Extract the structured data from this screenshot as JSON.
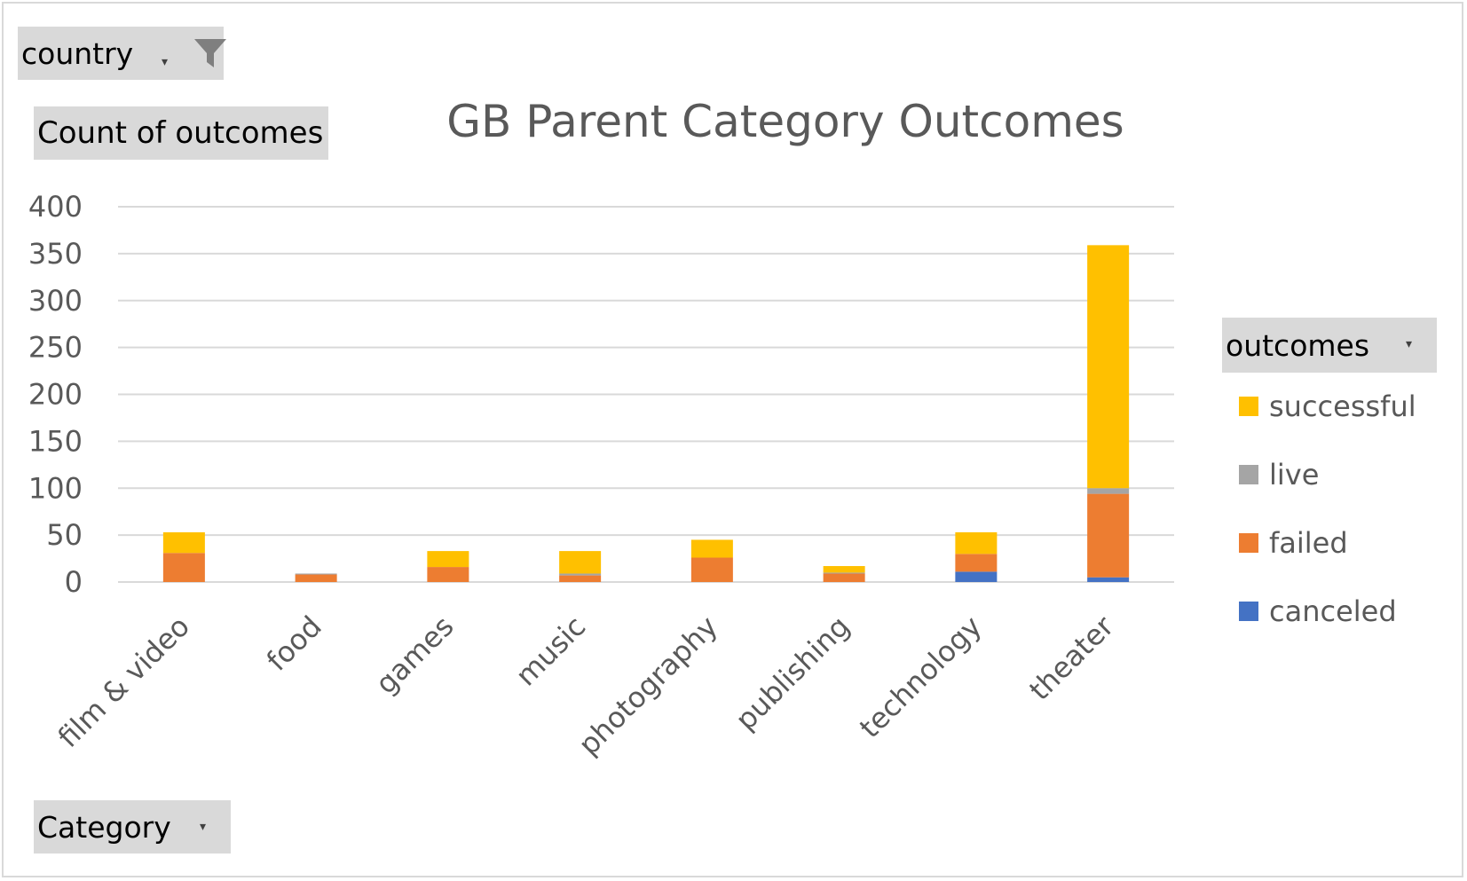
{
  "filters": {
    "country_label": "country",
    "values_label": "Count of outcomes",
    "category_label": "Category",
    "legend_field_label": "outcomes"
  },
  "icons": {
    "filter": "funnel-filter-icon",
    "dropdown": "dropdown-arrow-icon"
  },
  "chart_data": {
    "type": "bar",
    "stacked": true,
    "title": "GB Parent Category Outcomes",
    "xlabel": "",
    "ylabel": "",
    "ylim": [
      0,
      400
    ],
    "yticks": [
      0,
      50,
      100,
      150,
      200,
      250,
      300,
      350,
      400
    ],
    "grid": true,
    "legend_position": "right",
    "categories": [
      "film & video",
      "food",
      "games",
      "music",
      "photography",
      "publishing",
      "technology",
      "theater"
    ],
    "series": [
      {
        "name": "canceled",
        "color": "#4472c4",
        "values": [
          0,
          0,
          0,
          0,
          0,
          0,
          11,
          5
        ]
      },
      {
        "name": "failed",
        "color": "#ed7d31",
        "values": [
          31,
          8,
          16,
          7,
          26,
          9,
          19,
          89
        ]
      },
      {
        "name": "live",
        "color": "#a5a5a5",
        "values": [
          0,
          1,
          0,
          2,
          0,
          1,
          0,
          6
        ]
      },
      {
        "name": "successful",
        "color": "#ffc000",
        "values": [
          22,
          0,
          17,
          24,
          19,
          7,
          23,
          259
        ]
      }
    ],
    "legend_order": [
      "successful",
      "live",
      "failed",
      "canceled"
    ]
  }
}
